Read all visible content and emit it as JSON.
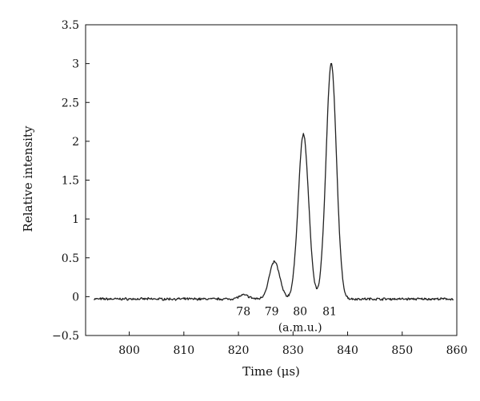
{
  "chart_data": {
    "type": "line",
    "title": "",
    "xlabel": "Time (μs)",
    "ylabel": "Relative intensity",
    "xlim": [
      792,
      860
    ],
    "ylim": [
      -0.5,
      3.5
    ],
    "xticks": [
      "800",
      "810",
      "820",
      "830",
      "840",
      "850",
      "860"
    ],
    "yticks": [
      "−0.5",
      "0",
      "0.5",
      "1",
      "1.5",
      "2",
      "2.5",
      "3",
      "3.5"
    ],
    "grid": false,
    "legend": "none",
    "line_color": "#222222",
    "baseline": -0.03,
    "noise_amplitude": 0.012,
    "peaks": [
      {
        "label": "78",
        "x": 821.0,
        "height": 0.05,
        "width": 0.9
      },
      {
        "label": "79",
        "x": 826.6,
        "height": 0.48,
        "width": 0.95
      },
      {
        "label": "80",
        "x": 831.9,
        "height": 2.12,
        "width": 0.95
      },
      {
        "label": "81",
        "x": 837.0,
        "height": 3.03,
        "width": 0.95
      }
    ],
    "peak_labels": [
      {
        "text": "78",
        "x": 820.9
      },
      {
        "text": "79",
        "x": 826.1
      },
      {
        "text": "80",
        "x": 831.3
      },
      {
        "text": "81",
        "x": 836.7
      }
    ],
    "annotation": "(a.m.u.)",
    "annotation_x": 831.3
  }
}
